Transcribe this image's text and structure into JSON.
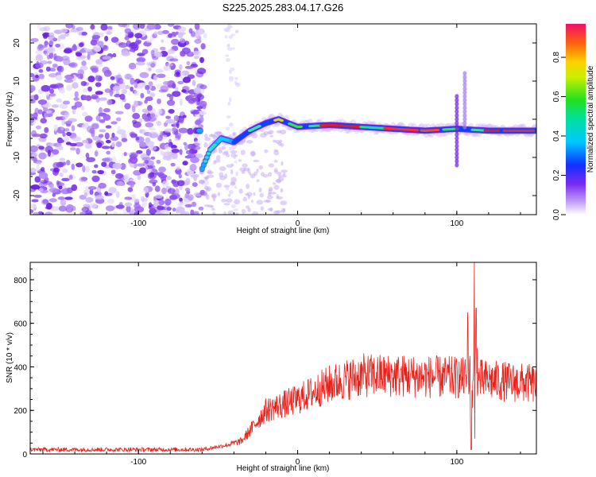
{
  "title": "S225.2025.283.04.17.G26",
  "colors": {
    "snr_line": "#e8201a",
    "scatter": "#7a3cf0",
    "axis": "#000000"
  },
  "chart_data": [
    {
      "type": "heatmap",
      "name": "spectrogram",
      "xlabel": "Height of straight line (km)",
      "ylabel": "Frequency (Hz)",
      "xlim": [
        -168,
        150
      ],
      "ylim": [
        -25,
        25
      ],
      "x_ticks": [
        -100,
        0,
        100
      ],
      "x_tick_labels": [
        "-100",
        "0",
        "100"
      ],
      "y_ticks": [
        -20,
        -10,
        0,
        10,
        20
      ],
      "y_tick_labels": [
        "-20",
        "-10",
        "0",
        "10",
        "20"
      ],
      "ridge": [
        {
          "x": -60,
          "y": -13
        },
        {
          "x": -55,
          "y": -8
        },
        {
          "x": -48,
          "y": -5
        },
        {
          "x": -40,
          "y": -6
        },
        {
          "x": -30,
          "y": -3
        },
        {
          "x": -20,
          "y": -1
        },
        {
          "x": -12,
          "y": 0
        },
        {
          "x": 0,
          "y": -2
        },
        {
          "x": 20,
          "y": -1.5
        },
        {
          "x": 40,
          "y": -2
        },
        {
          "x": 60,
          "y": -2.5
        },
        {
          "x": 80,
          "y": -3
        },
        {
          "x": 100,
          "y": -2.5
        },
        {
          "x": 120,
          "y": -3
        },
        {
          "x": 150,
          "y": -3
        }
      ],
      "colorbar": {
        "label": "Normalized spectral amplitude",
        "ticks": [
          0.0,
          0.2,
          0.4,
          0.6,
          0.8
        ],
        "tick_labels": [
          "0.0",
          "0.2",
          "0.4",
          "0.6",
          "0.8"
        ],
        "range": [
          0,
          0.97
        ]
      }
    },
    {
      "type": "line",
      "name": "snr",
      "xlabel": "Height of straight line (km)",
      "ylabel": "SNR (10 * v/v)",
      "xlim": [
        -168,
        150
      ],
      "ylim": [
        0,
        880
      ],
      "x_ticks": [
        -100,
        0,
        100
      ],
      "x_tick_labels": [
        "-100",
        "0",
        "100"
      ],
      "y_ticks": [
        0,
        200,
        400,
        600,
        800
      ],
      "y_tick_labels": [
        "0",
        "200",
        "400",
        "600",
        "800"
      ],
      "trend": [
        {
          "x": -168,
          "y": 20
        },
        {
          "x": -60,
          "y": 20
        },
        {
          "x": -45,
          "y": 40
        },
        {
          "x": -35,
          "y": 60
        },
        {
          "x": -20,
          "y": 200
        },
        {
          "x": 0,
          "y": 250
        },
        {
          "x": 20,
          "y": 320
        },
        {
          "x": 40,
          "y": 360
        },
        {
          "x": 60,
          "y": 360
        },
        {
          "x": 100,
          "y": 350
        },
        {
          "x": 150,
          "y": 320
        }
      ],
      "spikes": [
        {
          "x": 107,
          "y": 650
        },
        {
          "x": 109,
          "y": 20
        },
        {
          "x": 111,
          "y": 880
        },
        {
          "x": 112,
          "y": 670
        }
      ]
    }
  ]
}
